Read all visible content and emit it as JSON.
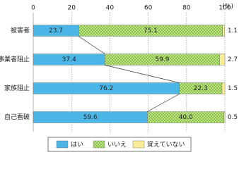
{
  "chart_data": {
    "type": "stacked_bar_horizontal",
    "xlabel": "(%)",
    "categories": [
      "被害者",
      "事業者阻止",
      "家族阻止",
      "自己看破"
    ],
    "series": [
      {
        "name": "はい",
        "color": "#4cb6e6",
        "values": [
          23.7,
          37.4,
          76.2,
          59.6
        ]
      },
      {
        "name": "いいえ",
        "color": "#8cc63f",
        "values": [
          75.1,
          59.9,
          22.3,
          40.0
        ],
        "value_labels": [
          "75.1",
          "59.9",
          "22.3",
          "40.0"
        ]
      },
      {
        "name": "覚えていない",
        "color": "#fff4a3",
        "values": [
          1.1,
          2.7,
          1.5,
          0.5
        ]
      }
    ],
    "xlim": [
      0,
      100
    ],
    "xticks": [
      0,
      20,
      40,
      60,
      80,
      100
    ],
    "grid": true,
    "legend": "bottom"
  }
}
